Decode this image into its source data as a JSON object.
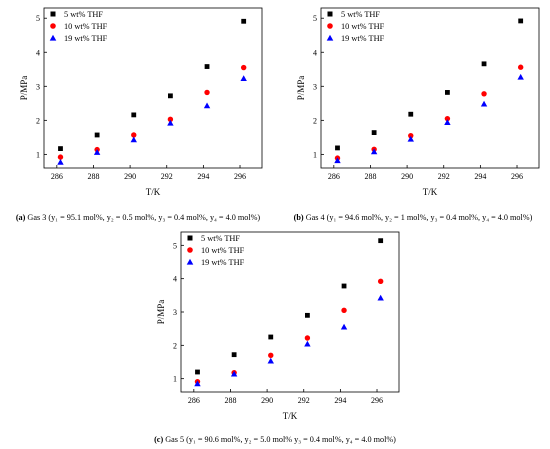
{
  "style": {
    "colors": {
      "5 wt% THF": "#000000",
      "10 wt% THF": "#ff0000",
      "19 wt% THF": "#0000ff"
    },
    "markers": {
      "5 wt% THF": "square",
      "10 wt% THF": "circle",
      "19 wt% THF": "triangle"
    }
  },
  "chart_data": [
    {
      "type": "scatter",
      "panel_label": "(a)",
      "caption_text": "Gas 3 (y₁ = 95.1 mol%, y₂ = 0.5 mol%, y₃ = 0.4 mol%, y₄ = 4.0 mol%)",
      "xlabel": "T/K",
      "ylabel": "P/MPa",
      "xlim": [
        285.3,
        297.2
      ],
      "ylim": [
        0.6,
        5.3
      ],
      "xticks": [
        286,
        288,
        290,
        292,
        294,
        296
      ],
      "yticks": [
        1,
        2,
        3,
        4,
        5
      ],
      "legend_position": "top-left",
      "series": [
        {
          "name": "5 wt% THF",
          "x": [
            286.2,
            288.2,
            290.2,
            292.2,
            294.2,
            296.2
          ],
          "y": [
            1.17,
            1.57,
            2.16,
            2.72,
            3.58,
            4.91
          ]
        },
        {
          "name": "10 wt% THF",
          "x": [
            286.2,
            288.2,
            290.2,
            292.2,
            294.2,
            296.2
          ],
          "y": [
            0.92,
            1.14,
            1.57,
            2.03,
            2.82,
            3.55
          ]
        },
        {
          "name": "19 wt% THF",
          "x": [
            286.2,
            288.2,
            290.2,
            292.2,
            294.2,
            296.2
          ],
          "y": [
            0.77,
            1.06,
            1.43,
            1.92,
            2.43,
            3.23
          ]
        }
      ]
    },
    {
      "type": "scatter",
      "panel_label": "(b)",
      "caption_text": "Gas 4 (y₁ = 94.6 mol%, y₂ = 1 mol%, y₃ = 0.4 mol%, y₄ = 4.0 mol%)",
      "xlabel": "T/K",
      "ylabel": "P/MPa",
      "xlim": [
        285.3,
        297.2
      ],
      "ylim": [
        0.6,
        5.3
      ],
      "xticks": [
        286,
        288,
        290,
        292,
        294,
        296
      ],
      "yticks": [
        1,
        2,
        3,
        4,
        5
      ],
      "legend_position": "top-left",
      "series": [
        {
          "name": "5 wt% THF",
          "x": [
            286.2,
            288.2,
            290.2,
            292.2,
            294.2,
            296.2
          ],
          "y": [
            1.19,
            1.64,
            2.18,
            2.82,
            3.66,
            4.92
          ]
        },
        {
          "name": "10 wt% THF",
          "x": [
            286.2,
            288.2,
            290.2,
            292.2,
            294.2,
            296.2
          ],
          "y": [
            0.89,
            1.15,
            1.55,
            2.05,
            2.78,
            3.56
          ]
        },
        {
          "name": "19 wt% THF",
          "x": [
            286.2,
            288.2,
            290.2,
            292.2,
            294.2,
            296.2
          ],
          "y": [
            0.82,
            1.08,
            1.45,
            1.94,
            2.48,
            3.27
          ]
        }
      ]
    },
    {
      "type": "scatter",
      "panel_label": "(c)",
      "caption_text": "Gas 5 (y₁ = 90.6 mol%, y₂ = 5.0 mol% y₃ = 0.4 mol%, y₄ = 4.0 mol%)",
      "xlabel": "T/K",
      "ylabel": "P/MPa",
      "xlim": [
        285.3,
        297.2
      ],
      "ylim": [
        0.6,
        5.4
      ],
      "xticks": [
        286,
        288,
        290,
        292,
        294,
        296
      ],
      "yticks": [
        1,
        2,
        3,
        4,
        5
      ],
      "legend_position": "top-left",
      "series": [
        {
          "name": "5 wt% THF",
          "x": [
            286.2,
            288.2,
            290.2,
            292.2,
            294.2,
            296.2
          ],
          "y": [
            1.2,
            1.72,
            2.25,
            2.9,
            3.78,
            5.14
          ]
        },
        {
          "name": "10 wt% THF",
          "x": [
            286.2,
            288.2,
            290.2,
            292.2,
            294.2,
            296.2
          ],
          "y": [
            0.91,
            1.18,
            1.7,
            2.22,
            3.05,
            3.92
          ]
        },
        {
          "name": "19 wt% THF",
          "x": [
            286.2,
            288.2,
            290.2,
            292.2,
            294.2,
            296.2
          ],
          "y": [
            0.85,
            1.14,
            1.53,
            2.04,
            2.55,
            3.42
          ]
        }
      ]
    }
  ]
}
